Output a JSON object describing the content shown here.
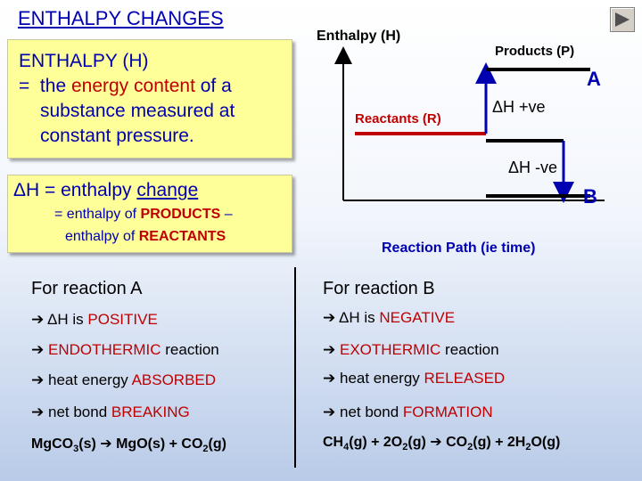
{
  "title": "ENTHALPY CHANGES",
  "definition_box": {
    "line1": "ENTHALPY (H)",
    "line2_prefix": "=  the ",
    "line2_highlight": "energy content",
    "line2_suffix": " of a",
    "line3": "substance measured at",
    "line4": "constant pressure."
  },
  "delta_box": {
    "line1_prefix": "ΔH = enthalpy ",
    "line1_underlined": "change",
    "line2_prefix": "= enthalpy of ",
    "line2_key": "PRODUCTS",
    "line2_suffix": " –",
    "line3_prefix": "enthalpy of ",
    "line3_key": "REACTANTS"
  },
  "graph": {
    "y_axis_label": "Enthalpy (H)",
    "products_label": "Products (P)",
    "reactants_label": "Reactants (R)",
    "reaction_a_tag": "A",
    "reaction_b_tag": "B",
    "delta_pos_label": "ΔH +ve",
    "delta_neg_label": "ΔH -ve",
    "x_axis_label": "Reaction Path (ie time)",
    "colors": {
      "reactants": "#c00000",
      "products": "#000000",
      "arrow": "#0000b0"
    }
  },
  "reaction_a": {
    "heading": "For reaction A",
    "items": [
      {
        "prefix": "ΔH is ",
        "key": "POSITIVE",
        "suffix": ""
      },
      {
        "prefix": "",
        "key": "ENDOTHERMIC",
        "suffix": " reaction"
      },
      {
        "prefix": "heat energy ",
        "key": "ABSORBED",
        "suffix": ""
      },
      {
        "prefix": "net bond ",
        "key": "BREAKING",
        "suffix": ""
      }
    ],
    "equation": {
      "p1": "Mg",
      "p2": "CO",
      "s1": "3",
      "p3": "(s) ",
      "arrow": "➔",
      "p4": " Mg",
      "p5": "O(s) + CO",
      "s2": "2",
      "p6": "(g)"
    }
  },
  "reaction_b": {
    "heading": "For reaction B",
    "items": [
      {
        "prefix": "ΔH is ",
        "key": "NEGATIVE",
        "suffix": ""
      },
      {
        "prefix": "",
        "key": "EXOTHERMIC",
        "suffix": " reaction"
      },
      {
        "prefix": "heat energy ",
        "key": "RELEASED",
        "suffix": ""
      },
      {
        "prefix": "net bond ",
        "key": "FORMATION",
        "suffix": ""
      }
    ],
    "equation": {
      "p1": "CH",
      "s1": "4",
      "p2": "(g) + 2O",
      "s2": "2",
      "p3": "(g) ",
      "arrow": "➔",
      "p4": " CO",
      "s3": "2",
      "p5": "(g) + 2H",
      "s4": "2",
      "p6": "O(g)"
    }
  },
  "bullet_glyph": "➔",
  "nav_icon": "play-triangle-icon"
}
